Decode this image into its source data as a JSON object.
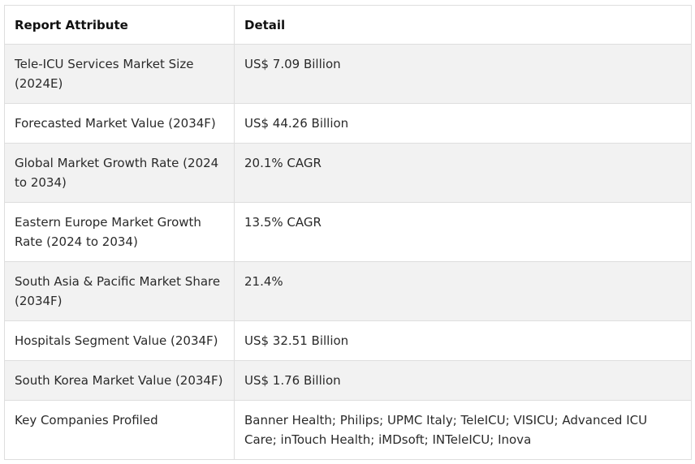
{
  "table": {
    "headers": [
      "Report Attribute",
      "Detail"
    ],
    "rows": [
      [
        "Tele-ICU Services Market Size (2024E)",
        "US$ 7.09 Billion"
      ],
      [
        "Forecasted Market Value (2034F)",
        "US$ 44.26 Billion"
      ],
      [
        "Global Market Growth Rate (2024 to 2034)",
        "20.1% CAGR"
      ],
      [
        "Eastern Europe Market Growth Rate (2024 to 2034)",
        "13.5% CAGR"
      ],
      [
        "South Asia & Pacific Market Share (2034F)",
        "21.4%"
      ],
      [
        "Hospitals Segment Value (2034F)",
        "US$ 32.51 Billion"
      ],
      [
        "South Korea Market Value (2034F)",
        "US$ 1.76 Billion"
      ],
      [
        "Key Companies Profiled",
        "Banner Health; Philips; UPMC Italy; TeleICU; VISICU; Advanced ICU Care; inTouch Health; iMDsoft; INTeleICU; Inova"
      ]
    ]
  }
}
